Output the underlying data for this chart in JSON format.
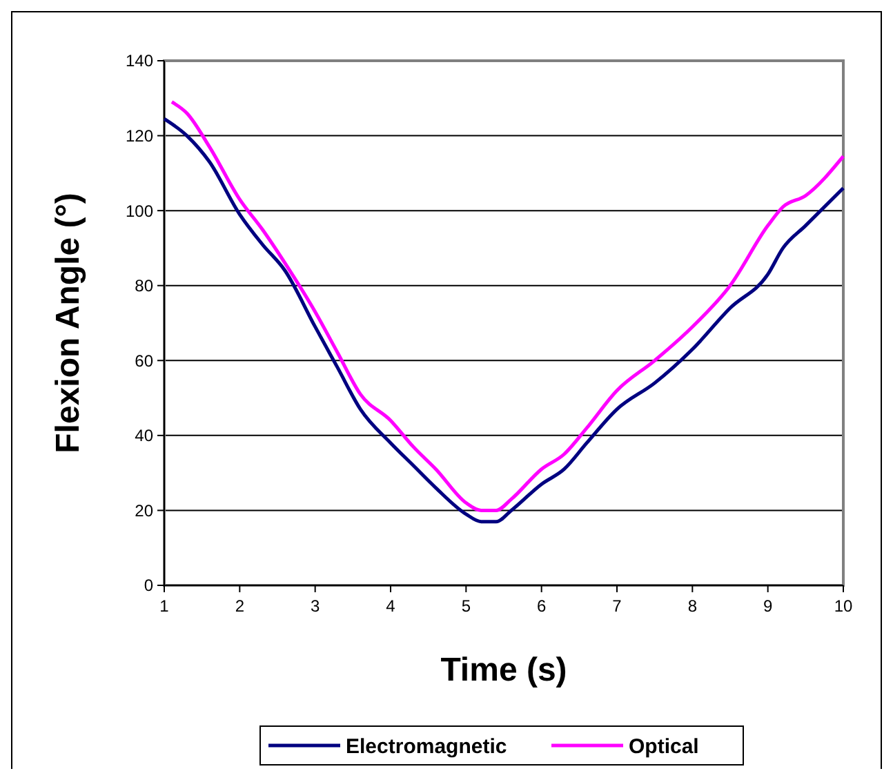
{
  "chart_data": {
    "type": "line",
    "xlabel": "Time (s)",
    "ylabel": "Flexion Angle (°)",
    "xlim": [
      1,
      10
    ],
    "xticks": [
      1,
      2,
      3,
      4,
      5,
      6,
      7,
      8,
      9,
      10
    ],
    "ylim": [
      0,
      140
    ],
    "yticks": [
      0,
      20,
      40,
      60,
      80,
      100,
      120,
      140
    ],
    "grid": "y",
    "legend": "bottom",
    "line_style": "solid",
    "marker": "none",
    "series": [
      {
        "name": "Electromagnetic",
        "color": "#000080",
        "x": [
          1,
          1.3,
          1.6,
          2,
          2.3,
          2.6,
          3,
          3.3,
          3.6,
          4,
          4.3,
          4.6,
          5,
          5.2,
          5.4,
          5.6,
          6,
          6.3,
          6.6,
          7,
          7.5,
          8,
          8.5,
          9,
          9.2,
          9.5,
          10
        ],
        "values": [
          124.5,
          120,
          113,
          99,
          91,
          84,
          69,
          58,
          47,
          38,
          32,
          26,
          19,
          17,
          17,
          20,
          27,
          31,
          38,
          47,
          54,
          63,
          74,
          83,
          90,
          96,
          106
        ]
      },
      {
        "name": "Optical",
        "color": "#ff00ff",
        "x": [
          1.1,
          1.3,
          1.6,
          2,
          2.3,
          2.6,
          3,
          3.3,
          3.6,
          4,
          4.3,
          4.6,
          5,
          5.2,
          5.4,
          5.6,
          6,
          6.3,
          6.6,
          7,
          7.5,
          8,
          8.5,
          9,
          9.2,
          9.5,
          10
        ],
        "values": [
          129,
          126,
          117,
          103,
          95,
          86,
          73,
          62,
          51,
          44,
          37,
          31,
          22,
          20,
          20,
          23,
          31,
          35,
          42,
          52,
          60,
          69,
          80,
          96,
          101,
          104,
          114.5
        ]
      }
    ]
  }
}
